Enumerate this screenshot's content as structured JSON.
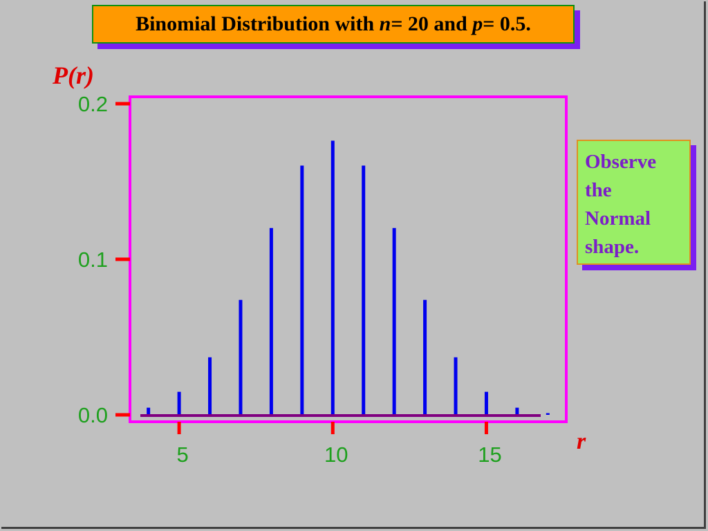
{
  "title": {
    "prefix": "Binomial Distribution with ",
    "n_var": "n",
    "n_part": " = 20 and ",
    "p_var": "p",
    "p_part": " = 0.5."
  },
  "note": {
    "lines": [
      "Observe",
      "the",
      "Normal",
      "shape."
    ]
  },
  "colors": {
    "bar": "#0000ee",
    "frame": "#ff00ff",
    "tick": "#ff0000",
    "tick_label": "#1ea01e",
    "baseline": "#800080"
  },
  "chart_data": {
    "type": "bar",
    "title": "Binomial Distribution with n = 20 and p = 0.5.",
    "xlabel": "r",
    "ylabel": "P(r)",
    "x": [
      4,
      5,
      6,
      7,
      8,
      9,
      10,
      11,
      12,
      13,
      14,
      15,
      16,
      17
    ],
    "values": [
      0.0046,
      0.0148,
      0.037,
      0.0739,
      0.1201,
      0.1602,
      0.1762,
      0.1602,
      0.1201,
      0.0739,
      0.037,
      0.0148,
      0.0046,
      0.0011
    ],
    "xlim": [
      3.4,
      17.6
    ],
    "ylim": [
      0,
      0.205
    ],
    "x_ticks": [
      5,
      10,
      15
    ],
    "x_tick_labels": [
      "5",
      "10",
      "15"
    ],
    "y_ticks": [
      0,
      0.1,
      0.2
    ],
    "y_tick_labels": [
      "0.0",
      "0.1",
      "0.2"
    ],
    "grid": false,
    "legend": "none"
  }
}
